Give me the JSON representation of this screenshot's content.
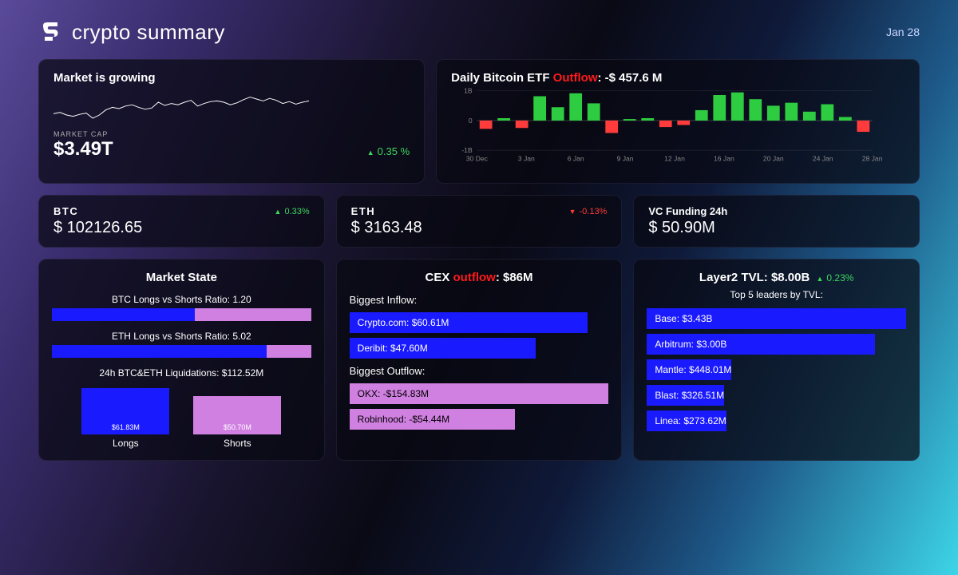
{
  "header": {
    "brand": "crypto summary",
    "date": "Jan 28"
  },
  "market_cap": {
    "title": "Market is growing",
    "label": "MARKET CAP",
    "value": "$3.49T",
    "change_pct": "0.35 %",
    "direction": "up",
    "sparkline": {
      "points": [
        38,
        36,
        40,
        42,
        39,
        37,
        45,
        40,
        32,
        28,
        30,
        26,
        24,
        28,
        31,
        29,
        20,
        25,
        22,
        24,
        20,
        17,
        26,
        22,
        19,
        18,
        20,
        24,
        21,
        16,
        12,
        15,
        18,
        14,
        17,
        22,
        19,
        23,
        20,
        18
      ],
      "stroke": "#ffffff",
      "width": 1.2
    }
  },
  "etf": {
    "title_prefix": "Daily Bitcoin ETF ",
    "flow_word": "Outflow",
    "title_suffix": ": -$ 457.6 M",
    "ylim": [
      -1,
      1
    ],
    "ytick_labels": [
      "1B",
      "0",
      "-1B"
    ],
    "xtick_labels": [
      "30 Dec",
      "3 Jan",
      "6 Jan",
      "9 Jan",
      "12 Jan",
      "16 Jan",
      "20 Jan",
      "24 Jan",
      "28 Jan"
    ],
    "axis_color": "#888",
    "bars": [
      {
        "v": -0.28
      },
      {
        "v": 0.08
      },
      {
        "v": -0.25
      },
      {
        "v": 0.82
      },
      {
        "v": 0.45
      },
      {
        "v": 0.92
      },
      {
        "v": 0.58
      },
      {
        "v": -0.42
      },
      {
        "v": 0.05
      },
      {
        "v": 0.08
      },
      {
        "v": -0.22
      },
      {
        "v": -0.15
      },
      {
        "v": 0.35
      },
      {
        "v": 0.86
      },
      {
        "v": 0.95
      },
      {
        "v": 0.72
      },
      {
        "v": 0.5
      },
      {
        "v": 0.6
      },
      {
        "v": 0.3
      },
      {
        "v": 0.55
      },
      {
        "v": 0.12
      },
      {
        "v": -0.38
      }
    ],
    "up_color": "#2ecc40",
    "down_color": "#ff3b3b",
    "bg": "transparent"
  },
  "tickers": {
    "btc": {
      "symbol": "BTC",
      "price": "$ 102126.65",
      "change": "0.33%",
      "direction": "up"
    },
    "eth": {
      "symbol": "ETH",
      "price": "$ 3163.48",
      "change": "-0.13%",
      "direction": "down"
    },
    "vc": {
      "label": "VC Funding 24h",
      "value": "$ 50.90M"
    }
  },
  "market_state": {
    "title": "Market State",
    "btc_ratio_label": "BTC Longs vs Shorts Ratio: 1.20",
    "btc_long_pct": 55,
    "eth_ratio_label": "ETH Longs vs Shorts Ratio: 5.02",
    "eth_long_pct": 83,
    "liq_label": "24h BTC&ETH Liquidations: $112.52M",
    "longs": {
      "name": "Longs",
      "amount": "$61.83M",
      "height": 58
    },
    "shorts": {
      "name": "Shorts",
      "amount": "$50.70M",
      "height": 48
    },
    "long_color": "#1a1aff",
    "short_color": "#d080e0"
  },
  "cex": {
    "title_prefix": "CEX ",
    "flow_word": "outflow",
    "title_suffix": ": $86M",
    "inflow_label": "Biggest Inflow:",
    "inflows": [
      {
        "text": "Crypto.com: $60.61M",
        "width": 92
      },
      {
        "text": "Deribit: $47.60M",
        "width": 72
      }
    ],
    "outflow_label": "Biggest Outflow:",
    "outflows": [
      {
        "text": "OKX: -$154.83M",
        "width": 100
      },
      {
        "text": "Robinhood: -$54.44M",
        "width": 64
      }
    ],
    "inflow_color": "#1a1aff",
    "outflow_color": "#d080e0"
  },
  "layer2": {
    "title_prefix": "Layer2 TVL: ",
    "tvl": "$8.00B",
    "change": "0.23%",
    "direction": "up",
    "subtitle": "Top 5 leaders by TVL:",
    "leaders": [
      {
        "text": "Base: $3.43B",
        "width": 100
      },
      {
        "text": "Arbitrum: $3.00B",
        "width": 88
      },
      {
        "text": "Mantle: $448.01M",
        "width": 18
      },
      {
        "text": "Blast: $326.51M",
        "width": 14
      },
      {
        "text": "Linea: $273.62M",
        "width": 12
      }
    ],
    "bar_color": "#1a1aff"
  }
}
